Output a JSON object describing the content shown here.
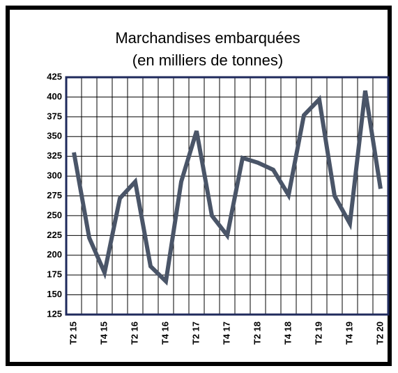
{
  "chart_data": {
    "type": "line",
    "title": "Marchandises embarquées",
    "subtitle": "(en milliers de tonnes)",
    "categories": [
      "T2 15",
      null,
      "T4 15",
      null,
      "T2 16",
      null,
      "T4 16",
      null,
      "T2 17",
      null,
      "T4 17",
      null,
      "T2 18",
      null,
      "T4 18",
      null,
      "T2 19",
      null,
      "T4 19",
      null,
      "T2 20"
    ],
    "series": [
      {
        "name": "Marchandises embarquées",
        "color": "#4a5568",
        "values": [
          330,
          222,
          178,
          272,
          293,
          186,
          167,
          293,
          357,
          250,
          225,
          323,
          317,
          308,
          276,
          377,
          397,
          275,
          240,
          408,
          284
        ]
      }
    ],
    "ylim": [
      125,
      425
    ],
    "yticks": [
      125,
      150,
      175,
      200,
      225,
      250,
      275,
      300,
      325,
      350,
      375,
      400,
      425
    ],
    "grid": true
  }
}
